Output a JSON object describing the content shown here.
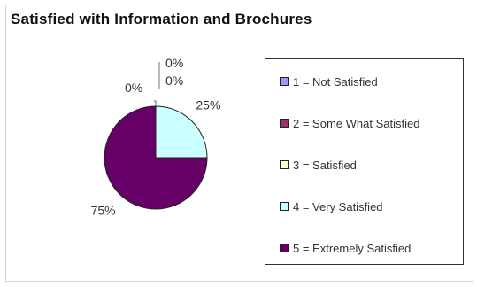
{
  "chart_data": {
    "type": "pie",
    "title": "Satisfied with Information and Brochures",
    "categories": [
      "1 = Not Satisfied",
      "2 = Some What Satisfied",
      "3 = Satisfied",
      "4 = Very Satisfied",
      "5 = Extremely Satisfied"
    ],
    "values": [
      0,
      0,
      0,
      25,
      75
    ],
    "data_labels": [
      "0%",
      "0%",
      "0%",
      "25%",
      "75%"
    ],
    "colors": [
      "#9999ff",
      "#993366",
      "#ffffcc",
      "#ccffff",
      "#660066"
    ],
    "legend_position": "right"
  }
}
